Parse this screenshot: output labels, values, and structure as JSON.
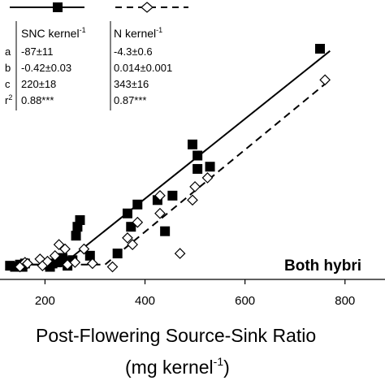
{
  "chart_data": {
    "type": "scatter",
    "panel_label": "Both hybri",
    "xlabel": "Post-Flowering Source-Sink Ratio",
    "xlabel_units": "(mg kernel",
    "xlabel_units_sup": "-1",
    "xlabel_units_close": ")",
    "xlim": [
      110,
      880
    ],
    "ylim": [
      0,
      1
    ],
    "x_ticks": [
      200,
      400,
      600,
      800
    ],
    "x_tick_labels": [
      "200",
      "400",
      "600",
      "800"
    ],
    "grid": false,
    "series": [
      {
        "name": "SNC kernel",
        "name_sup": "-1",
        "marker": "filled-square",
        "line": "solid",
        "points": [
          [
            130,
            0.025
          ],
          [
            140,
            0.02
          ],
          [
            150,
            0.03
          ],
          [
            155,
            0.02
          ],
          [
            160,
            0.035
          ],
          [
            205,
            0.03
          ],
          [
            210,
            0.02
          ],
          [
            215,
            0.035
          ],
          [
            225,
            0.04
          ],
          [
            235,
            0.06
          ],
          [
            240,
            0.045
          ],
          [
            245,
            0.025
          ],
          [
            255,
            0.05
          ],
          [
            262,
            0.16
          ],
          [
            265,
            0.2
          ],
          [
            270,
            0.23
          ],
          [
            290,
            0.07
          ],
          [
            345,
            0.08
          ],
          [
            365,
            0.26
          ],
          [
            372,
            0.2
          ],
          [
            385,
            0.3
          ],
          [
            425,
            0.32
          ],
          [
            440,
            0.18
          ],
          [
            455,
            0.34
          ],
          [
            495,
            0.57
          ],
          [
            505,
            0.46
          ],
          [
            505,
            0.52
          ],
          [
            530,
            0.47
          ],
          [
            750,
            1.0
          ]
        ],
        "fit": [
          [
            150,
            0.03
          ],
          [
            235,
            0.03
          ],
          [
            770,
            0.99
          ]
        ]
      },
      {
        "name": "N kernel",
        "name_sup": "-1",
        "marker": "open-diamond",
        "line": "dashed",
        "points": [
          [
            150,
            0.02
          ],
          [
            160,
            0.04
          ],
          [
            165,
            0.035
          ],
          [
            190,
            0.055
          ],
          [
            195,
            0.025
          ],
          [
            205,
            0.045
          ],
          [
            220,
            0.07
          ],
          [
            228,
            0.12
          ],
          [
            240,
            0.1
          ],
          [
            245,
            0.03
          ],
          [
            260,
            0.04
          ],
          [
            278,
            0.1
          ],
          [
            295,
            0.035
          ],
          [
            335,
            0.02
          ],
          [
            365,
            0.15
          ],
          [
            375,
            0.12
          ],
          [
            385,
            0.22
          ],
          [
            430,
            0.26
          ],
          [
            430,
            0.34
          ],
          [
            470,
            0.08
          ],
          [
            495,
            0.32
          ],
          [
            500,
            0.38
          ],
          [
            525,
            0.42
          ],
          [
            760,
            0.86
          ]
        ],
        "fit": [
          [
            150,
            0.03
          ],
          [
            320,
            0.03
          ],
          [
            770,
            0.86
          ]
        ]
      }
    ],
    "table": {
      "row_labels": [
        "a",
        "b",
        "c",
        "r"
      ],
      "r_sup": "2",
      "rows": [
        [
          "-87±11",
          "-4.3±0.6"
        ],
        [
          "-0.42±0.03",
          "0.014±0.001"
        ],
        [
          "220±18",
          "343±16"
        ],
        [
          "0.88***",
          "0.87***"
        ]
      ]
    }
  }
}
